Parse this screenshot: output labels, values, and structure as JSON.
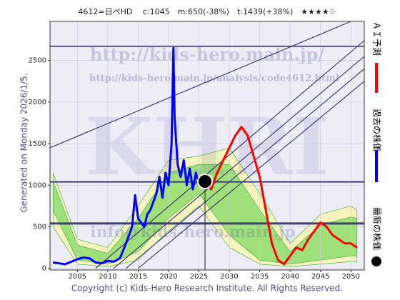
{
  "chart_data": {
    "type": "line",
    "title": "4612=日ペHD　 c:1045　m:650(-38%)　t:1439(+38%)　★★★★☆",
    "side_label": "Generated on Monday 2026/1/5.",
    "footer": "Copyright (c) Kids-Hero Research Institute. All Rights Reserved.",
    "watermarks": [
      "http://kids-hero.main.jp/",
      "http://kids-hero.main.jp/analysis/code4612.html",
      "KHRI",
      "info@kids-hero.main.jp"
    ],
    "xlim": [
      2000.5,
      2052.2
    ],
    "ylim": [
      -20,
      2970
    ],
    "xticks": [
      2005,
      2010,
      2015,
      2020,
      2025,
      2030,
      2035,
      2040,
      2045,
      2050
    ],
    "yticks": [
      0,
      500,
      1000,
      1500,
      2000,
      2500
    ],
    "grid": true,
    "bands": [
      {
        "color": "#f6f3b4",
        "x": [
          2001,
          2005,
          2010,
          2015,
          2020,
          2025,
          2030,
          2035,
          2040,
          2045,
          2050,
          2051
        ],
        "low": [
          500,
          50,
          20,
          100,
          450,
          750,
          250,
          50,
          20,
          50,
          80,
          80
        ],
        "high": [
          1150,
          350,
          250,
          750,
          1300,
          1350,
          1450,
          900,
          300,
          650,
          750,
          700
        ]
      },
      {
        "color": "#8fdc6f",
        "x": [
          2001,
          2005,
          2010,
          2015,
          2020,
          2025,
          2030,
          2035,
          2040,
          2045,
          2050,
          2051
        ],
        "low": [
          700,
          100,
          50,
          200,
          600,
          900,
          400,
          100,
          50,
          100,
          150,
          150
        ],
        "high": [
          1050,
          280,
          180,
          600,
          1150,
          1250,
          1250,
          700,
          200,
          520,
          620,
          600
        ]
      }
    ],
    "hlines": [
      {
        "value": 2670,
        "color": "#5a5a90",
        "width": 2
      },
      {
        "value": 1040,
        "color": "#3f3f78",
        "width": 2
      },
      {
        "value": 540,
        "color": "#3f3f78",
        "width": 3
      }
    ],
    "trend_lines": [
      [
        [
          2000.5,
          1450
        ],
        [
          2050,
          2970
        ]
      ],
      [
        [
          2008,
          0
        ],
        [
          2052.2,
          2740
        ]
      ],
      [
        [
          2011,
          0
        ],
        [
          2052.2,
          2550
        ]
      ],
      [
        [
          2013,
          0
        ],
        [
          2052.2,
          2400
        ]
      ],
      [
        [
          2015,
          0
        ],
        [
          2052.2,
          2250
        ]
      ]
    ],
    "series": [
      {
        "name": "ＡＩ予測",
        "color": "#ff0000",
        "x": [
          2026,
          2027,
          2028,
          2029,
          2030,
          2031,
          2032,
          2033,
          2034,
          2035,
          2036,
          2037,
          2038,
          2039,
          2040,
          2041,
          2042,
          2043,
          2044,
          2045,
          2046,
          2047,
          2048,
          2049,
          2050,
          2051
        ],
        "values": [
          1045,
          950,
          1150,
          1300,
          1450,
          1600,
          1700,
          1600,
          1350,
          1100,
          700,
          300,
          100,
          50,
          150,
          250,
          220,
          350,
          450,
          550,
          500,
          400,
          350,
          300,
          300,
          250
        ]
      },
      {
        "name": "過去の株価",
        "color": "#0000ff",
        "x": [
          2001,
          2002,
          2003,
          2004,
          2005,
          2006,
          2007,
          2008,
          2009,
          2010,
          2011,
          2012,
          2013,
          2014,
          2014.5,
          2015,
          2016,
          2016.5,
          2017,
          2018,
          2018.5,
          2019,
          2019.5,
          2020,
          2020.5,
          2020.8,
          2021,
          2021.5,
          2022,
          2022.5,
          2023,
          2023.5,
          2024,
          2024.5,
          2025,
          2025.5,
          2026
        ],
        "values": [
          70,
          60,
          50,
          80,
          110,
          130,
          120,
          70,
          60,
          90,
          80,
          120,
          300,
          500,
          880,
          600,
          500,
          650,
          700,
          900,
          1100,
          850,
          1150,
          1000,
          1500,
          2650,
          1800,
          1250,
          1100,
          1300,
          1000,
          1200,
          950,
          1150,
          1000,
          1050,
          1045
        ]
      },
      {
        "name": "最新の株価",
        "color": "#000000",
        "x": [
          2026
        ],
        "values": [
          1045
        ]
      }
    ]
  }
}
